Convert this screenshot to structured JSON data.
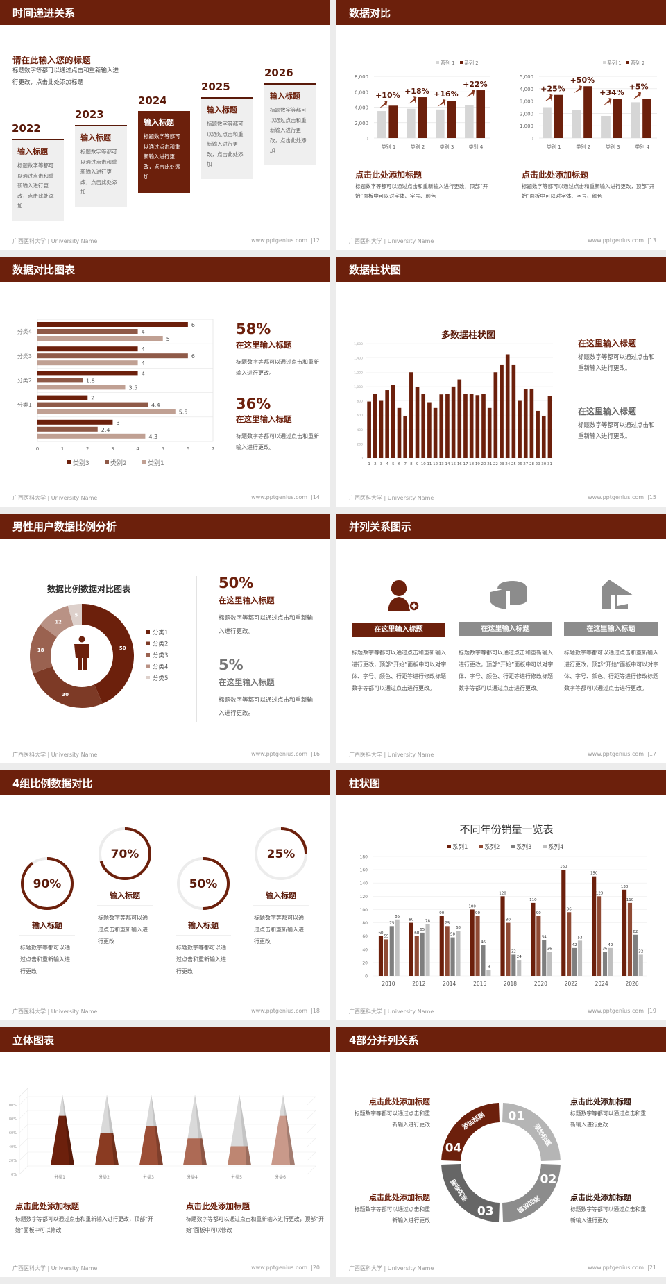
{
  "footer": {
    "left": "广西医科大学 | University Name",
    "site": "www.pptgenius.com"
  },
  "colors": {
    "brown": "#6c200c",
    "brown_mid": "#8f4a34",
    "brown_light": "#c0a093",
    "gray_light": "#d6d6d6",
    "gray": "#8c8c8c"
  },
  "slides": {
    "s12": {
      "title": "时间递进关系",
      "page": "|12",
      "heading": "请在此输入您的标题",
      "desc": [
        "标题数字等都可以通过点击和重新输入进",
        "行更改，点击此处添加标题"
      ],
      "cards": [
        {
          "year": "2022",
          "title": "输入标题",
          "text": "标题数字等都可以通过点击和重新输入进行更改，点击此处添加"
        },
        {
          "year": "2023",
          "title": "输入标题",
          "text": "标题数字等都可以通过点击和重新输入进行更改，点击此处添加"
        },
        {
          "year": "2024",
          "title": "输入标题",
          "text": "标题数字等都可以通过点击和重新输入进行更改，点击此处添加"
        },
        {
          "year": "2025",
          "title": "输入标题",
          "text": "标题数字等都可以通过点击和重新输入进行更改，点击此处添加"
        },
        {
          "year": "2026",
          "title": "输入标题",
          "text": "标题数字等都可以通过点击和重新输入进行更改，点击此处添加"
        }
      ]
    },
    "s13": {
      "title": "数据对比",
      "page": "|13",
      "blocks": [
        {
          "title": "点击此处添加标题",
          "text": "标题数字等都可以通过点击和重新输入进行更改，顶部“开始”面板中可以对字体、字号、颜色"
        },
        {
          "title": "点击此处添加标题",
          "text": "标题数字等都可以通过点击和重新输入进行更改，顶部“开始”面板中可以对字体、字号、颜色"
        }
      ]
    },
    "s14": {
      "title": "数据对比图表",
      "page": "|14",
      "stats": [
        {
          "value": "58%",
          "title": "在这里输入标题",
          "text": "标题数字等都可以通过点击和重新输入进行更改。"
        },
        {
          "value": "36%",
          "title": "在这里输入标题",
          "text": "标题数字等都可以通过点击和重新输入进行更改。"
        }
      ]
    },
    "s15": {
      "title": "数据柱状图",
      "page": "|15",
      "notes": [
        {
          "title": "在这里输入标题",
          "text": "标题数字等都可以通过点击和重新输入进行更改。"
        },
        {
          "title": "在这里输入标题",
          "text": "标题数字等都可以通过点击和重新输入进行更改。"
        }
      ]
    },
    "s16": {
      "title": "男性用户数据比例分析",
      "page": "|16",
      "stats": [
        {
          "value": "50%",
          "title": "在这里输入标题",
          "text": "标题数字等都可以通过点击和重新输入进行更改。"
        },
        {
          "value": "5%",
          "title": "在这里输入标题",
          "text": "标题数字等都可以通过点击和重新输入进行更改。"
        }
      ]
    },
    "s17": {
      "title": "并列关系图示",
      "page": "|17",
      "items": [
        {
          "icon": "user-add-icon",
          "label": "在这里输入标题",
          "text": "标题数字等都可以通过点击和重新输入进行更改，顶部“开始”面板中可以对字体、字号、颜色、行距等进行修改标题数字等都可以通过点击进行更改。"
        },
        {
          "icon": "pie-chart-3d-icon",
          "label": "在这里输入标题",
          "text": "标题数字等都可以通过点击和重新输入进行更改，顶部“开始”面板中可以对字体、字号、颜色、行距等进行修改标题数字等都可以通过点击进行更改。"
        },
        {
          "icon": "storefront-icon",
          "label": "在这里输入标题",
          "text": "标题数字等都可以通过点击和重新输入进行更改，顶部“开始”面板中可以对字体、字号、颜色、行距等进行修改标题数字等都可以通过点击进行更改。"
        }
      ]
    },
    "s18": {
      "title": "4组比例数据对比",
      "page": "|18",
      "rings": [
        {
          "value": 90,
          "label": "90%",
          "title": "输入标题",
          "text": "标题数字等都可以通过点击和重新输入进行更改"
        },
        {
          "value": 70,
          "label": "70%",
          "title": "输入标题",
          "text": "标题数字等都可以通过点击和重新输入进行更改"
        },
        {
          "value": 50,
          "label": "50%",
          "title": "输入标题",
          "text": "标题数字等都可以通过点击和重新输入进行更改"
        },
        {
          "value": 25,
          "label": "25%",
          "title": "输入标题",
          "text": "标题数字等都可以通过点击和重新输入进行更改"
        }
      ]
    },
    "s19": {
      "title": "柱状图",
      "page": "|19"
    },
    "s20": {
      "title": "立体图表",
      "page": "|20",
      "blocks": [
        {
          "title": "点击此处添加标题",
          "text": "标题数字等都可以通过点击和重新输入进行更改，顶部“开始”面板中可以修改"
        },
        {
          "title": "点击此处添加标题",
          "text": "标题数字等都可以通过点击和重新输入进行更改，顶部“开始”面板中可以修改"
        }
      ]
    },
    "s21": {
      "title": "4部分并列关系",
      "page": "|21",
      "segments": [
        {
          "num": "01",
          "label": "添加标题",
          "color": "#b5b5b5"
        },
        {
          "num": "02",
          "label": "添加标题",
          "color": "#8c8c8c"
        },
        {
          "num": "03",
          "label": "添加标题",
          "color": "#666666"
        },
        {
          "num": "04",
          "label": "添加标题",
          "color": "#6c200c"
        }
      ],
      "blocks": [
        {
          "title": "点击此处添加标题",
          "text": "标题数字等都可以通过点击和重新输入进行更改"
        },
        {
          "title": "点击此处添加标题",
          "text": "标题数字等都可以通过点击和重新输入进行更改"
        },
        {
          "title": "点击此处添加标题",
          "text": "标题数字等都可以通过点击和重新输入进行更改"
        },
        {
          "title": "点击此处添加标题",
          "text": "标题数字等都可以通过点击和重新输入进行更改"
        }
      ]
    }
  },
  "chart_data": [
    {
      "id": "s13a",
      "type": "bar",
      "categories": [
        "类别 1",
        "类别 2",
        "类别 3",
        "类别 4"
      ],
      "series": [
        {
          "name": "系列 1",
          "values": [
            3500,
            3800,
            3700,
            4300
          ],
          "color": "#d6d6d6"
        },
        {
          "name": "系列 2",
          "values": [
            4200,
            5300,
            4800,
            6200
          ],
          "color": "#6c200c"
        }
      ],
      "annotations": [
        "+10%",
        "+18%",
        "+16%",
        "+22%"
      ],
      "ylim": [
        0,
        8000
      ],
      "yticks": [
        "0",
        "2,000",
        "4,000",
        "6,000",
        "8,000"
      ],
      "legend": "top-right",
      "grid": true
    },
    {
      "id": "s13b",
      "type": "bar",
      "categories": [
        "类别 1",
        "类别 2",
        "类别 3",
        "类别 4"
      ],
      "series": [
        {
          "name": "系列 1",
          "values": [
            2500,
            2300,
            1800,
            2900
          ],
          "color": "#d6d6d6"
        },
        {
          "name": "系列 2",
          "values": [
            3500,
            4200,
            3200,
            3200
          ],
          "color": "#6c200c"
        }
      ],
      "annotations": [
        "+25%",
        "+50%",
        "+34%",
        "+5%"
      ],
      "ylim": [
        0,
        5000
      ],
      "yticks": [
        "0",
        "1,000",
        "2,000",
        "3,000",
        "4,000",
        "5,000"
      ],
      "legend": "top-right",
      "grid": true
    },
    {
      "id": "s14",
      "type": "bar",
      "orientation": "horizontal",
      "categories": [
        "",
        "分类1",
        "分类2",
        "分类3",
        "分类4"
      ],
      "series": [
        {
          "name": "类别3",
          "values": [
            3,
            2,
            4,
            4,
            6
          ],
          "color": "#6c200c"
        },
        {
          "name": "类别2",
          "values": [
            2.4,
            4.4,
            1.8,
            6,
            4
          ],
          "color": "#8f5a48"
        },
        {
          "name": "类别1",
          "values": [
            4.3,
            5.5,
            3.5,
            4,
            5
          ],
          "color": "#c0a093"
        }
      ],
      "xlim": [
        0,
        7
      ],
      "xticks": [
        "0",
        "1",
        "2",
        "3",
        "4",
        "5",
        "6",
        "7"
      ],
      "legend": "bottom",
      "data_labels": true
    },
    {
      "id": "s15",
      "type": "bar",
      "title": "多数据柱状图",
      "categories": [
        "1",
        "2",
        "3",
        "4",
        "5",
        "6",
        "7",
        "8",
        "9",
        "10",
        "11",
        "12",
        "13",
        "14",
        "15",
        "16",
        "17",
        "18",
        "19",
        "20",
        "21",
        "22",
        "23",
        "24",
        "25",
        "26",
        "27",
        "28",
        "29",
        "30",
        "31"
      ],
      "values": [
        790,
        900,
        800,
        950,
        1020,
        700,
        590,
        1200,
        990,
        900,
        780,
        700,
        890,
        900,
        1000,
        1100,
        900,
        900,
        880,
        900,
        700,
        1200,
        1300,
        1450,
        1300,
        800,
        960,
        970,
        660,
        590,
        870
      ],
      "ylim": [
        0,
        1600
      ],
      "yticks": [
        "0",
        "200",
        "400",
        "600",
        "800",
        "1,000",
        "1,200",
        "1,400",
        "1,600"
      ],
      "color": "#6c200c",
      "grid": true
    },
    {
      "id": "s16",
      "type": "pie",
      "donut": true,
      "title": "数据比例数据对比图表",
      "categories": [
        "分类1",
        "分类2",
        "分类3",
        "分类4",
        "分类5"
      ],
      "values": [
        50,
        30,
        18,
        12,
        5
      ],
      "colors": [
        "#6c200c",
        "#7d3a26",
        "#9a6250",
        "#b99285",
        "#ddd0cb"
      ],
      "legend": "right",
      "center_icon": "male-user-icon"
    },
    {
      "id": "s19",
      "type": "bar",
      "title": "不同年份销量一览表",
      "categories": [
        "2010",
        "2012",
        "2014",
        "2016",
        "2018",
        "2020",
        "2022",
        "2024",
        "2026"
      ],
      "series": [
        {
          "name": "系列1",
          "values": [
            60,
            80,
            90,
            100,
            120,
            110,
            160,
            150,
            130
          ],
          "color": "#6c200c"
        },
        {
          "name": "系列2",
          "values": [
            55,
            60,
            75,
            90,
            80,
            90,
            96,
            120,
            110
          ],
          "color": "#8f4a34"
        },
        {
          "name": "系列3",
          "values": [
            75,
            65,
            58,
            46,
            32,
            54,
            42,
            36,
            62
          ],
          "color": "#7f7f7f"
        },
        {
          "name": "系列4",
          "values": [
            85,
            78,
            68,
            9,
            24,
            36,
            53,
            42,
            32
          ],
          "color": "#bfbfbf"
        }
      ],
      "ylim": [
        0,
        180
      ],
      "yticks": [
        "0",
        "20",
        "40",
        "60",
        "80",
        "100",
        "120",
        "140",
        "160",
        "180"
      ],
      "legend": "top",
      "data_labels": true,
      "grid": true
    },
    {
      "id": "s20",
      "type": "bar",
      "style": "3d-pyramid-stacked",
      "categories": [
        "分类1",
        "分类2",
        "分类3",
        "分类4",
        "分类5",
        "分类6"
      ],
      "values": [
        70,
        46,
        55,
        38,
        27,
        70
      ],
      "colors": [
        "#6c200c",
        "#8a3b22",
        "#9c4e36",
        "#ad6a55",
        "#be8672",
        "#c9998a"
      ],
      "ylim": [
        0,
        100
      ],
      "yticks": [
        "0%",
        "20%",
        "40%",
        "60%",
        "80%",
        "100%"
      ],
      "grid": true
    }
  ]
}
